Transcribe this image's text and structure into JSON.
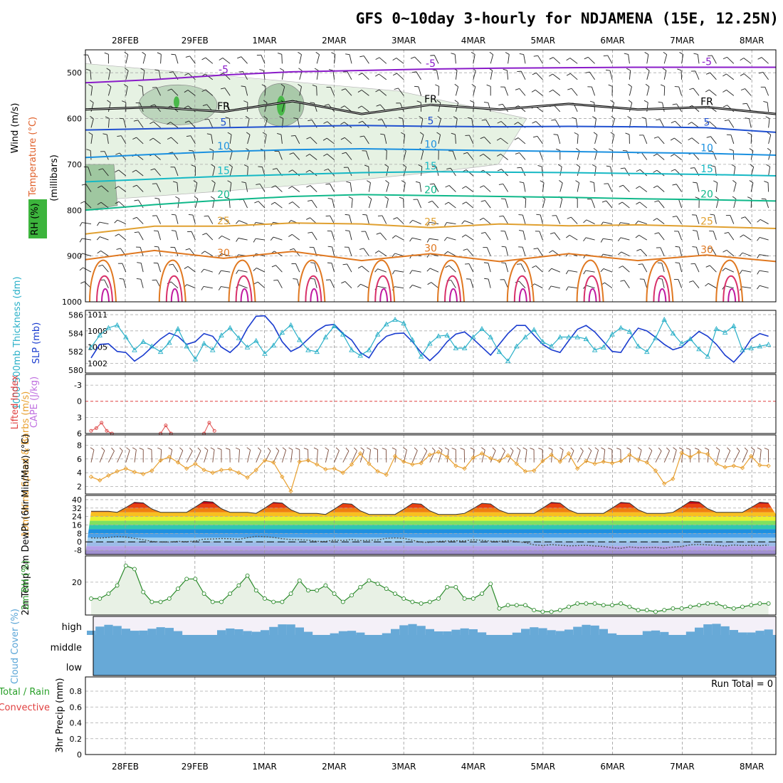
{
  "title": "GFS 0~10day 3-hourly for NDJAMENA (15E, 12.25N)",
  "chart_data": {
    "type": "line",
    "x_dates": [
      "28FEB",
      "29FEB",
      "1MAR",
      "2MAR",
      "3MAR",
      "4MAR",
      "5MAR",
      "6MAR",
      "7MAR",
      "8MAR"
    ],
    "panels": {
      "upper_air": {
        "ylabel": "(millibars)",
        "legend": [
          "Wind (m/s)",
          "Temperature (°C)",
          "RH (%)"
        ],
        "yticks": [
          "500",
          "600",
          "700",
          "800",
          "900",
          "1000"
        ],
        "ylim": [
          450,
          1000
        ],
        "freezing_label": "FR",
        "contours": [
          {
            "label": "-5",
            "color": "#8a1bc9",
            "pressure": [
              522,
              515,
              505,
              498,
              495,
              492,
              490,
              489,
              488,
              488,
              488
            ]
          },
          {
            "label": "FR",
            "color": "#000000",
            "pressure": [
              580,
              575,
              585,
              562,
              590,
              570,
              580,
              568,
              580,
              575,
              590
            ]
          },
          {
            "label": "5",
            "color": "#2050d0",
            "pressure": [
              625,
              622,
              620,
              617,
              615,
              617,
              618,
              617,
              618,
              620,
              630
            ]
          },
          {
            "label": "10",
            "color": "#1a90e0",
            "pressure": [
              685,
              678,
              672,
              668,
              666,
              668,
              670,
              672,
              674,
              676,
              680
            ]
          },
          {
            "label": "15",
            "color": "#15b8c4",
            "pressure": [
              738,
              732,
              726,
              722,
              718,
              716,
              717,
              718,
              720,
              722,
              725
            ]
          },
          {
            "label": "20",
            "color": "#10b88a",
            "pressure": [
              800,
              788,
              778,
              770,
              766,
              768,
              770,
              772,
              775,
              777,
              780
            ]
          },
          {
            "label": "25",
            "color": "#e0a030",
            "pressure": [
              852,
              835,
              835,
              828,
              830,
              838,
              830,
              834,
              832,
              836,
              840
            ]
          },
          {
            "label": "30",
            "color": "#e07820",
            "pressure": [
              908,
              888,
              905,
              890,
              910,
              895,
              912,
              895,
              910,
              898,
              912
            ]
          }
        ]
      },
      "thickness_slp": {
        "ylabel_left": "1000-500mb Thickness (dm)",
        "ylabel_right": "SLP (mb)",
        "thickness_ticks": [
          "580",
          "582",
          "584",
          "586"
        ],
        "slp_ticks": [
          "1002",
          "1005",
          "1008",
          "1011"
        ],
        "thickness_dm": [
          582.5,
          583.8,
          584.6,
          584.9,
          583.6,
          582.2,
          583.1,
          582.6,
          582.0,
          583.0,
          584.5,
          582.6,
          581.2,
          582.9,
          582.2,
          583.8,
          584.6,
          583.5,
          582.5,
          583.2,
          581.8,
          582.7,
          584.1,
          584.9,
          583.3,
          582.2,
          582.0,
          583.6,
          584.8,
          583.9,
          582.2,
          581.6,
          582.2,
          583.9,
          585.0,
          585.5,
          585.1,
          583.3,
          581.5,
          582.9,
          583.7,
          583.8,
          582.4,
          582.4,
          583.6,
          584.5,
          583.6,
          582.0,
          581.0,
          582.6,
          583.6,
          584.4,
          583.1,
          582.6,
          583.6,
          583.6,
          583.6,
          583.4,
          582.2,
          582.5,
          583.9,
          584.6,
          584.2,
          582.6,
          582.0,
          583.5,
          585.5,
          584.0,
          582.9,
          583.4,
          582.3,
          581.5,
          584.5,
          584.1,
          584.8,
          582.2,
          582.4,
          582.6,
          582.8
        ],
        "slp_mb": [
          1003.0,
          1005.5,
          1005.6,
          1004.2,
          1004.0,
          1002.4,
          1003.5,
          1005.0,
          1006.5,
          1007.6,
          1007.0,
          1005.5,
          1006.0,
          1007.5,
          1007.0,
          1005.0,
          1004.0,
          1005.5,
          1008.5,
          1010.7,
          1010.8,
          1009.0,
          1006.0,
          1004.2,
          1005.0,
          1006.5,
          1008.0,
          1009.0,
          1009.2,
          1007.5,
          1006.3,
          1004.0,
          1003.0,
          1005.5,
          1007.0,
          1007.5,
          1007.6,
          1006.0,
          1004.0,
          1002.5,
          1004.0,
          1006.0,
          1007.4,
          1007.8,
          1006.5,
          1005.0,
          1003.5,
          1005.5,
          1007.5,
          1009.0,
          1009.0,
          1007.2,
          1005.5,
          1004.5,
          1004.0,
          1006.2,
          1008.3,
          1009.0,
          1007.8,
          1006.0,
          1004.2,
          1004.0,
          1006.5,
          1008.5,
          1008.0,
          1006.8,
          1005.5,
          1004.5,
          1005.0,
          1006.5,
          1007.9,
          1007.0,
          1005.5,
          1003.5,
          1002.2,
          1004.0,
          1006.5,
          1007.5,
          1007.0
        ]
      },
      "cape_li": {
        "ylabel_left": "Lifted Index",
        "ylabel_right": "CAPE (J/kg)",
        "yticks": [
          "-3",
          "0",
          "3",
          "6"
        ],
        "li_segments": [
          [
            5.5,
            5.0,
            4.0,
            5.5,
            6.0
          ],
          [
            6.0,
            4.5,
            6.0
          ],
          [
            6.0,
            4.0,
            5.5
          ]
        ]
      },
      "wind10m": {
        "ylabel": "10m Wind Speed & Barbs (m/s)",
        "yticks": [
          "2",
          "4",
          "6",
          "8"
        ],
        "speed_ms": [
          3.4,
          2.9,
          3.6,
          4.2,
          4.6,
          4.1,
          3.8,
          4.3,
          5.8,
          6.3,
          5.5,
          4.6,
          5.3,
          4.4,
          4.0,
          4.4,
          4.5,
          4.0,
          3.3,
          4.4,
          5.8,
          5.5,
          3.4,
          1.3,
          5.6,
          5.8,
          5.2,
          4.5,
          4.6,
          4.0,
          5.2,
          6.8,
          5.3,
          4.2,
          3.7,
          6.4,
          5.6,
          5.2,
          5.4,
          6.6,
          7.0,
          6.3,
          5.0,
          4.6,
          6.2,
          6.8,
          6.1,
          5.7,
          6.5,
          5.3,
          4.2,
          4.3,
          5.7,
          6.6,
          5.6,
          6.8,
          4.6,
          5.7,
          5.3,
          5.6,
          5.4,
          5.7,
          6.6,
          5.9,
          5.5,
          4.3,
          2.4,
          3.1,
          6.9,
          6.3,
          7.0,
          6.7,
          5.3,
          4.8,
          5.0,
          4.7,
          6.4,
          5.1,
          5.0
        ]
      },
      "temp2m": {
        "ylabel": "2m Temp 2m DewPt (6hr Min/Max) (°C)",
        "yticks": [
          "-8",
          "0",
          "8",
          "16",
          "24",
          "32",
          "40"
        ],
        "temp_daily_min": [
          29,
          28,
          28,
          27,
          26,
          26,
          27,
          27,
          27,
          28,
          28
        ],
        "temp_daily_max": [
          null,
          38,
          39,
          38,
          37,
          37,
          37,
          38,
          38,
          39,
          null
        ],
        "dewpoint_c": [
          3.8,
          3.6,
          4.2,
          5.0,
          4.6,
          3.3,
          2.0,
          0.5,
          -0.2,
          -0.2,
          0.5,
          0.2,
          0.8,
          2.6,
          2.7,
          3.2,
          3.0,
          2.4,
          3.9,
          5.2,
          5.0,
          4.2,
          3.0,
          2.2,
          2.0,
          1.6,
          0.5,
          0.4,
          1.7,
          1.3,
          2.2,
          1.2,
          1.5,
          1.8,
          3.4,
          3.7,
          3.3,
          1.5,
          -0.3,
          -0.5,
          0.5,
          0.8,
          1.0,
          0.9,
          2.0,
          1.4,
          0.7,
          0.5,
          1.2,
          0.3,
          -0.7,
          -2.8,
          -3.4,
          -2.6,
          -3.2,
          -3.8,
          -3.6,
          -3.3,
          -3.9,
          -4.4,
          -5.6,
          -6.1,
          -4.8,
          -5.6,
          -5.5,
          -5.3,
          -6.0,
          -5.0,
          -4.4,
          -2.8,
          -2.4,
          -2.9,
          -3.3,
          -3.9,
          -3.0,
          -3.5,
          -3.3,
          -3.6,
          -3.0
        ]
      },
      "rh2m": {
        "ylabel": "2m RH (%)",
        "yticks": [
          "20"
        ],
        "values_pct": [
          10,
          10,
          13,
          18,
          30,
          28,
          14,
          8,
          8,
          10,
          16,
          22,
          22,
          13,
          8,
          8,
          13,
          18,
          24,
          15,
          10,
          8,
          8,
          13,
          21,
          15,
          15,
          18,
          13,
          8,
          12,
          17,
          21,
          19,
          16,
          13,
          10,
          8,
          7,
          8,
          10,
          17,
          17,
          10,
          10,
          13,
          19,
          4,
          6,
          6,
          6,
          3,
          2,
          2,
          3,
          5,
          7,
          7,
          7,
          6,
          6,
          7,
          5,
          3,
          3,
          2,
          3,
          4,
          4,
          5,
          6,
          7,
          7,
          5,
          4,
          5,
          6,
          7,
          7
        ]
      },
      "cloud": {
        "ylabel": "Cloud Cover (%)",
        "levels": [
          "high",
          "middle",
          "low"
        ]
      },
      "precip": {
        "ylabel": "3hr Precip (mm)",
        "legend": [
          "Total / Rain",
          "Convective"
        ],
        "yticks": [
          "0",
          "0.2",
          "0.4",
          "0.6",
          "0.8"
        ],
        "run_total_label": "Run Total = 0",
        "values_mm": []
      }
    }
  }
}
